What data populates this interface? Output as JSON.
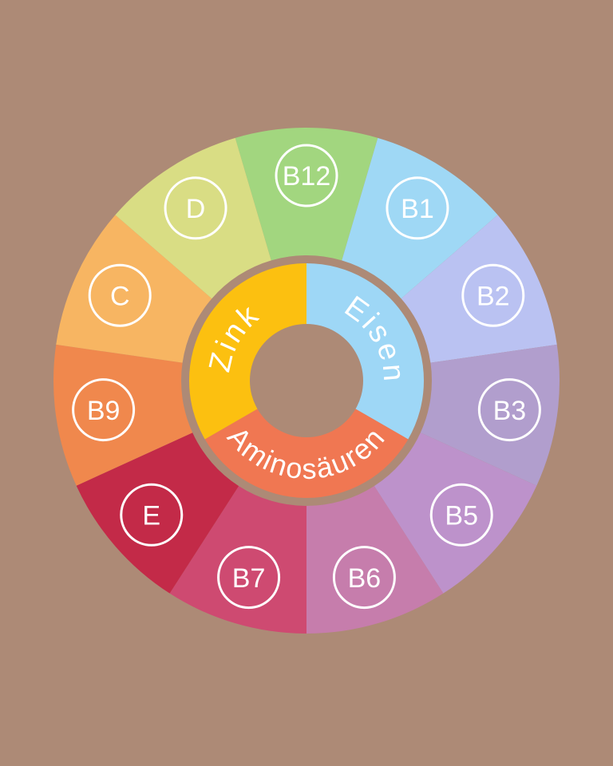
{
  "background_color": "#AD8A76",
  "text_color": "#FFFFFF",
  "wheel": {
    "outer_ring": {
      "segments": [
        {
          "label": "B12",
          "color": "#A2D67F"
        },
        {
          "label": "B1",
          "color": "#9FD8F5"
        },
        {
          "label": "B2",
          "color": "#BAC2F2"
        },
        {
          "label": "B3",
          "color": "#B19ECD"
        },
        {
          "label": "B5",
          "color": "#BD92CB"
        },
        {
          "label": "B6",
          "color": "#C67DAC"
        },
        {
          "label": "B7",
          "color": "#CE4A71"
        },
        {
          "label": "E",
          "color": "#C32A48"
        },
        {
          "label": "B9",
          "color": "#F0884D"
        },
        {
          "label": "C",
          "color": "#F7B562"
        },
        {
          "label": "D",
          "color": "#D9DD84"
        }
      ]
    },
    "inner_ring": {
      "segments": [
        {
          "label": "Eisen",
          "color": "#9ED7F6"
        },
        {
          "label": "Aminosäuren",
          "color": "#F07752"
        },
        {
          "label": "Zink",
          "color": "#FCC010"
        }
      ]
    }
  }
}
